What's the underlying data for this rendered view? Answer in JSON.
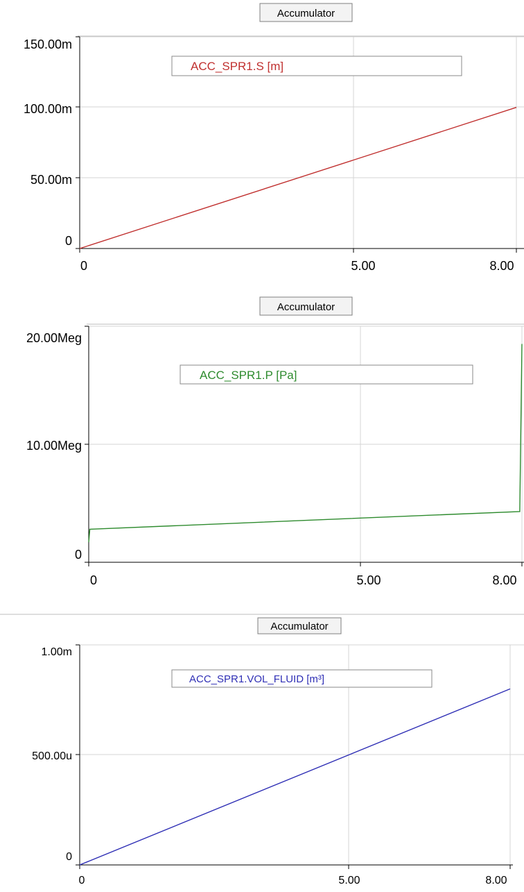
{
  "chart_data": [
    {
      "type": "line",
      "title": "Accumulator",
      "legend": "ACC_SPR1.S [m]",
      "legend_placement": "top-center",
      "x": [
        0,
        8.0
      ],
      "series": [
        {
          "name": "ACC_SPR1.S [m]",
          "color": "#c0302f",
          "values": [
            0,
            0.1
          ]
        }
      ],
      "xlim": [
        0,
        8.0
      ],
      "ylim": [
        0,
        0.15
      ],
      "xticks": [
        0,
        5.0,
        8.0
      ],
      "xtick_labels": [
        "0",
        "5.00",
        "8.00"
      ],
      "yticks": [
        0,
        0.05,
        0.1,
        0.15
      ],
      "ytick_labels": [
        "0",
        "50.00m",
        "100.00m",
        "150.00m"
      ],
      "grid": true
    },
    {
      "type": "line",
      "title": "Accumulator",
      "legend": "ACC_SPR1.P [Pa]",
      "legend_placement": "top-center",
      "x": [
        0,
        0.02,
        7.96,
        8.0
      ],
      "series": [
        {
          "name": "ACC_SPR1.P [Pa]",
          "color": "#2e8b2e",
          "values": [
            1700000,
            2800000,
            4300000,
            18500000
          ]
        }
      ],
      "xlim": [
        0,
        8.0
      ],
      "ylim": [
        0,
        20000000
      ],
      "xticks": [
        0,
        5.0,
        8.0
      ],
      "xtick_labels": [
        "0",
        "5.00",
        "8.00"
      ],
      "yticks": [
        0,
        10000000,
        20000000
      ],
      "ytick_labels": [
        "0",
        "10.00Meg",
        "20.00Meg"
      ],
      "grid": true
    },
    {
      "type": "line",
      "title": "Accumulator",
      "legend": "ACC_SPR1.VOL_FLUID [m³]",
      "legend_placement": "top-center",
      "x": [
        0,
        8.0
      ],
      "series": [
        {
          "name": "ACC_SPR1.VOL_FLUID [m³]",
          "color": "#2f2fb5",
          "values": [
            0,
            0.0008
          ]
        }
      ],
      "xlim": [
        0,
        8.0
      ],
      "ylim": [
        0,
        0.001
      ],
      "xticks": [
        0,
        5.0,
        8.0
      ],
      "xtick_labels": [
        "0",
        "5.00",
        "8.00"
      ],
      "yticks": [
        0,
        0.0005,
        0.001
      ],
      "ytick_labels": [
        "0",
        "500.00u",
        "1.00m"
      ],
      "grid": true
    }
  ]
}
